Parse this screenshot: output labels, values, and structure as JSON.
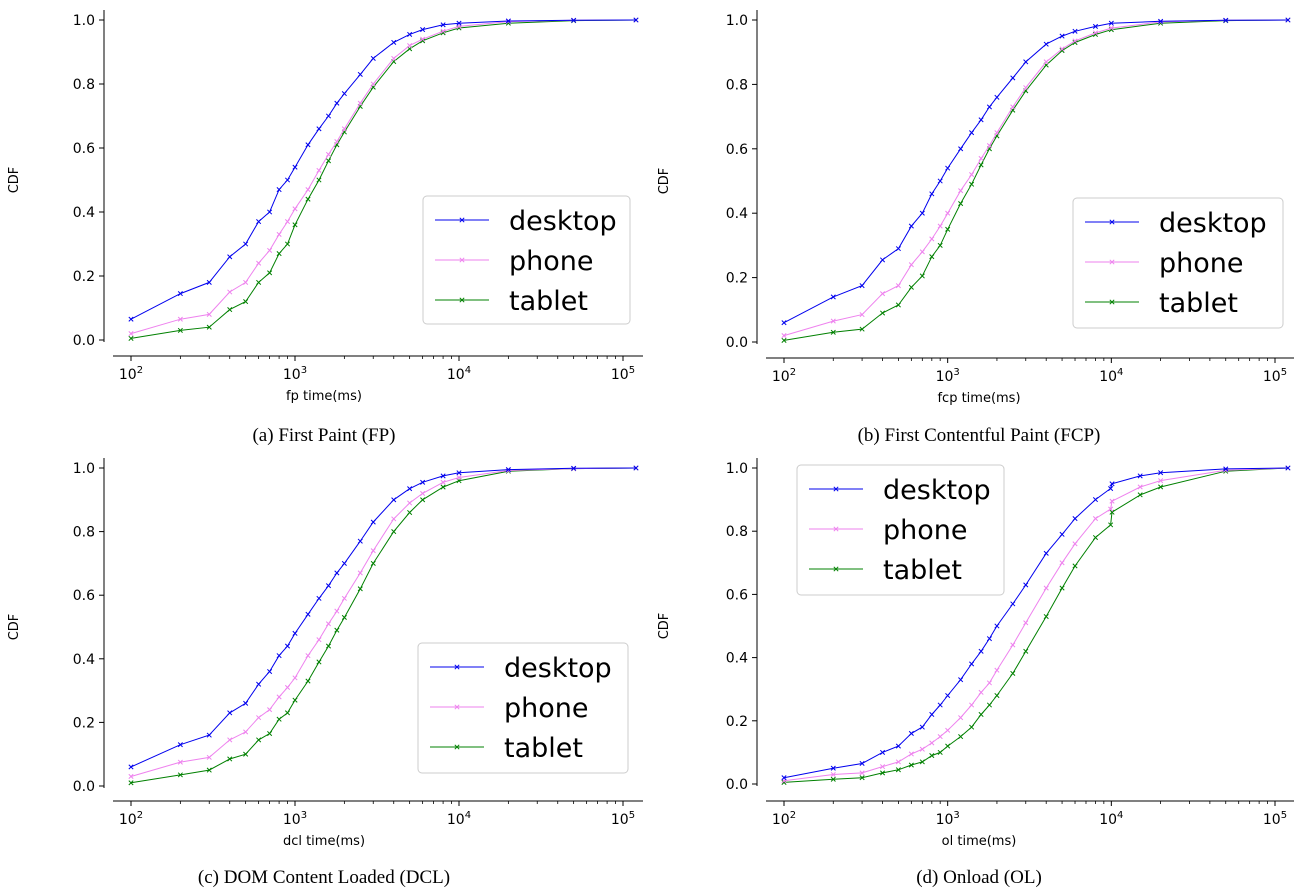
{
  "chart_data": [
    {
      "type": "line",
      "panel": "a",
      "caption": "(a) First Paint (FP)",
      "xlabel": "fp time(ms)",
      "ylabel": "CDF",
      "xscale": "log",
      "xlim": [
        100,
        130000
      ],
      "ylim": [
        0,
        1.0
      ],
      "xticks": [
        100,
        1000,
        10000,
        100000
      ],
      "yticks": [
        0.0,
        0.2,
        0.4,
        0.6,
        0.8,
        1.0
      ],
      "legend": "center-right",
      "series": [
        {
          "name": "desktop",
          "color": "#0000ee",
          "x": [
            100,
            200,
            300,
            400,
            500,
            600,
            700,
            800,
            900,
            1000,
            1200,
            1400,
            1600,
            1800,
            2000,
            2500,
            3000,
            4000,
            5000,
            6000,
            8000,
            10000,
            20000,
            50000,
            120000
          ],
          "y": [
            0.065,
            0.145,
            0.18,
            0.26,
            0.3,
            0.37,
            0.4,
            0.47,
            0.5,
            0.54,
            0.61,
            0.66,
            0.7,
            0.74,
            0.77,
            0.83,
            0.88,
            0.93,
            0.955,
            0.97,
            0.985,
            0.99,
            0.997,
            0.999,
            1.0
          ]
        },
        {
          "name": "phone",
          "color": "#ee82ee",
          "x": [
            100,
            200,
            300,
            400,
            500,
            600,
            700,
            800,
            900,
            1000,
            1200,
            1400,
            1600,
            1800,
            2000,
            2500,
            3000,
            4000,
            5000,
            6000,
            8000,
            10000,
            20000,
            50000,
            120000
          ],
          "y": [
            0.02,
            0.065,
            0.08,
            0.15,
            0.18,
            0.24,
            0.28,
            0.33,
            0.37,
            0.41,
            0.47,
            0.53,
            0.58,
            0.62,
            0.66,
            0.74,
            0.8,
            0.88,
            0.92,
            0.94,
            0.965,
            0.98,
            0.995,
            0.999,
            1.0
          ]
        },
        {
          "name": "tablet",
          "color": "#008000",
          "x": [
            100,
            200,
            300,
            400,
            500,
            600,
            700,
            800,
            900,
            1000,
            1200,
            1400,
            1600,
            1800,
            2000,
            2500,
            3000,
            4000,
            5000,
            6000,
            8000,
            10000,
            20000,
            50000,
            120000
          ],
          "y": [
            0.005,
            0.03,
            0.04,
            0.095,
            0.12,
            0.18,
            0.21,
            0.27,
            0.3,
            0.36,
            0.44,
            0.5,
            0.56,
            0.61,
            0.65,
            0.73,
            0.79,
            0.87,
            0.91,
            0.935,
            0.96,
            0.975,
            0.99,
            0.998,
            1.0
          ]
        }
      ]
    },
    {
      "type": "line",
      "panel": "b",
      "caption": "(b) First Contentful Paint (FCP)",
      "xlabel": "fcp time(ms)",
      "ylabel": "CDF",
      "xscale": "log",
      "xlim": [
        100,
        130000
      ],
      "ylim": [
        0,
        1.0
      ],
      "xticks": [
        100,
        1000,
        10000,
        100000
      ],
      "yticks": [
        0.0,
        0.2,
        0.4,
        0.6,
        0.8,
        1.0
      ],
      "legend": "center-right",
      "series": [
        {
          "name": "desktop",
          "color": "#0000ee",
          "x": [
            100,
            200,
            300,
            400,
            500,
            600,
            700,
            800,
            900,
            1000,
            1200,
            1400,
            1600,
            1800,
            2000,
            2500,
            3000,
            4000,
            5000,
            6000,
            8000,
            10000,
            20000,
            50000,
            120000
          ],
          "y": [
            0.06,
            0.14,
            0.175,
            0.255,
            0.29,
            0.36,
            0.4,
            0.46,
            0.5,
            0.54,
            0.6,
            0.65,
            0.69,
            0.73,
            0.76,
            0.82,
            0.87,
            0.925,
            0.95,
            0.965,
            0.98,
            0.99,
            0.996,
            0.999,
            1.0
          ]
        },
        {
          "name": "phone",
          "color": "#ee82ee",
          "x": [
            100,
            200,
            300,
            400,
            500,
            600,
            700,
            800,
            900,
            1000,
            1200,
            1400,
            1600,
            1800,
            2000,
            2500,
            3000,
            4000,
            5000,
            6000,
            8000,
            10000,
            20000,
            50000,
            120000
          ],
          "y": [
            0.02,
            0.065,
            0.085,
            0.15,
            0.175,
            0.24,
            0.28,
            0.32,
            0.36,
            0.4,
            0.47,
            0.52,
            0.57,
            0.61,
            0.65,
            0.73,
            0.79,
            0.87,
            0.91,
            0.935,
            0.96,
            0.975,
            0.994,
            0.999,
            1.0
          ]
        },
        {
          "name": "tablet",
          "color": "#008000",
          "x": [
            100,
            200,
            300,
            400,
            500,
            600,
            700,
            800,
            900,
            1000,
            1200,
            1400,
            1600,
            1800,
            2000,
            2500,
            3000,
            4000,
            5000,
            6000,
            8000,
            10000,
            20000,
            50000,
            120000
          ],
          "y": [
            0.005,
            0.03,
            0.04,
            0.09,
            0.115,
            0.17,
            0.205,
            0.265,
            0.3,
            0.35,
            0.43,
            0.49,
            0.55,
            0.6,
            0.64,
            0.72,
            0.78,
            0.86,
            0.905,
            0.93,
            0.955,
            0.97,
            0.99,
            0.998,
            1.0
          ]
        }
      ]
    },
    {
      "type": "line",
      "panel": "c",
      "caption": "(c) DOM Content Loaded (DCL)",
      "xlabel": "dcl time(ms)",
      "ylabel": "CDF",
      "xscale": "log",
      "xlim": [
        100,
        130000
      ],
      "ylim": [
        0,
        1.0
      ],
      "xticks": [
        100,
        1000,
        10000,
        100000
      ],
      "yticks": [
        0.0,
        0.2,
        0.4,
        0.6,
        0.8,
        1.0
      ],
      "legend": "center-right",
      "series": [
        {
          "name": "desktop",
          "color": "#0000ee",
          "x": [
            100,
            200,
            300,
            400,
            500,
            600,
            700,
            800,
            900,
            1000,
            1200,
            1400,
            1600,
            1800,
            2000,
            2500,
            3000,
            4000,
            5000,
            6000,
            8000,
            10000,
            20000,
            50000,
            120000
          ],
          "y": [
            0.06,
            0.13,
            0.16,
            0.23,
            0.26,
            0.32,
            0.36,
            0.41,
            0.44,
            0.48,
            0.54,
            0.59,
            0.63,
            0.67,
            0.7,
            0.77,
            0.83,
            0.9,
            0.935,
            0.955,
            0.975,
            0.985,
            0.995,
            0.999,
            1.0
          ]
        },
        {
          "name": "phone",
          "color": "#ee82ee",
          "x": [
            100,
            200,
            300,
            400,
            500,
            600,
            700,
            800,
            900,
            1000,
            1200,
            1400,
            1600,
            1800,
            2000,
            2500,
            3000,
            4000,
            5000,
            6000,
            8000,
            10000,
            20000,
            50000,
            120000
          ],
          "y": [
            0.03,
            0.075,
            0.09,
            0.145,
            0.17,
            0.215,
            0.24,
            0.28,
            0.31,
            0.34,
            0.41,
            0.46,
            0.51,
            0.55,
            0.59,
            0.67,
            0.74,
            0.84,
            0.89,
            0.92,
            0.955,
            0.97,
            0.992,
            0.998,
            1.0
          ]
        },
        {
          "name": "tablet",
          "color": "#008000",
          "x": [
            100,
            200,
            300,
            400,
            500,
            600,
            700,
            800,
            900,
            1000,
            1200,
            1400,
            1600,
            1800,
            2000,
            2500,
            3000,
            4000,
            5000,
            6000,
            8000,
            10000,
            20000,
            50000,
            120000
          ],
          "y": [
            0.01,
            0.035,
            0.05,
            0.085,
            0.1,
            0.145,
            0.165,
            0.21,
            0.23,
            0.27,
            0.33,
            0.39,
            0.44,
            0.49,
            0.53,
            0.62,
            0.7,
            0.8,
            0.86,
            0.9,
            0.94,
            0.96,
            0.99,
            0.998,
            1.0
          ]
        }
      ]
    },
    {
      "type": "line",
      "panel": "d",
      "caption": "(d) Onload (OL)",
      "xlabel": "ol time(ms)",
      "ylabel": "CDF",
      "xscale": "log",
      "xlim": [
        100,
        130000
      ],
      "ylim": [
        0,
        1.0
      ],
      "xticks": [
        100,
        1000,
        10000,
        100000
      ],
      "yticks": [
        0.0,
        0.2,
        0.4,
        0.6,
        0.8,
        1.0
      ],
      "legend": "upper-left",
      "series": [
        {
          "name": "desktop",
          "color": "#0000ee",
          "x": [
            100,
            200,
            300,
            400,
            500,
            600,
            700,
            800,
            900,
            1000,
            1200,
            1400,
            1600,
            1800,
            2000,
            2500,
            3000,
            4000,
            5000,
            6000,
            8000,
            9900,
            10100,
            15000,
            20000,
            50000,
            120000
          ],
          "y": [
            0.02,
            0.05,
            0.065,
            0.1,
            0.12,
            0.16,
            0.18,
            0.22,
            0.25,
            0.28,
            0.33,
            0.38,
            0.42,
            0.46,
            0.5,
            0.57,
            0.63,
            0.73,
            0.79,
            0.84,
            0.9,
            0.935,
            0.95,
            0.975,
            0.985,
            0.997,
            1.0
          ]
        },
        {
          "name": "phone",
          "color": "#ee82ee",
          "x": [
            100,
            200,
            300,
            400,
            500,
            600,
            700,
            800,
            900,
            1000,
            1200,
            1400,
            1600,
            1800,
            2000,
            2500,
            3000,
            4000,
            5000,
            6000,
            8000,
            9900,
            10100,
            15000,
            20000,
            50000,
            120000
          ],
          "y": [
            0.01,
            0.03,
            0.035,
            0.055,
            0.07,
            0.095,
            0.11,
            0.13,
            0.15,
            0.17,
            0.21,
            0.25,
            0.29,
            0.32,
            0.36,
            0.44,
            0.51,
            0.62,
            0.7,
            0.76,
            0.84,
            0.87,
            0.895,
            0.94,
            0.96,
            0.993,
            1.0
          ]
        },
        {
          "name": "tablet",
          "color": "#008000",
          "x": [
            100,
            200,
            300,
            400,
            500,
            600,
            700,
            800,
            900,
            1000,
            1200,
            1400,
            1600,
            1800,
            2000,
            2500,
            3000,
            4000,
            5000,
            6000,
            8000,
            9900,
            10100,
            15000,
            20000,
            50000,
            120000
          ],
          "y": [
            0.005,
            0.015,
            0.02,
            0.035,
            0.045,
            0.06,
            0.07,
            0.09,
            0.1,
            0.12,
            0.15,
            0.18,
            0.22,
            0.25,
            0.28,
            0.35,
            0.42,
            0.53,
            0.62,
            0.69,
            0.78,
            0.82,
            0.86,
            0.915,
            0.94,
            0.99,
            1.0
          ]
        }
      ]
    }
  ]
}
